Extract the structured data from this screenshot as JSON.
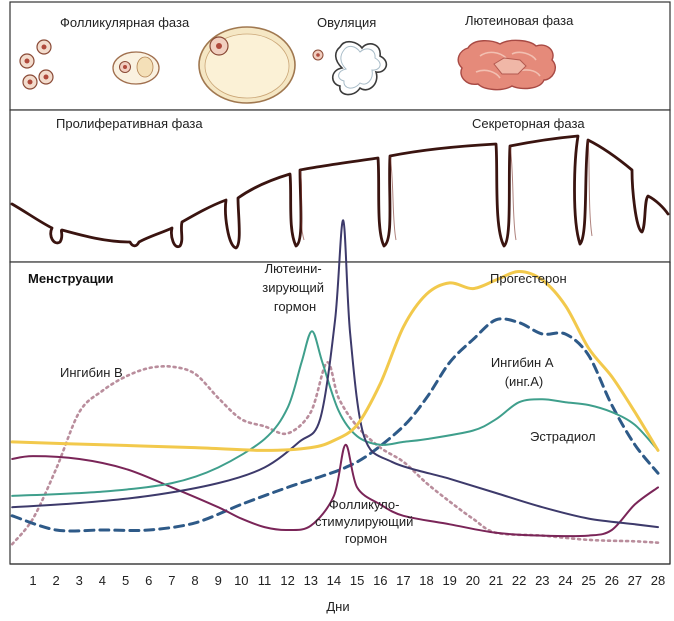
{
  "ovary_panel": {
    "follicular_label": "Фолликулярная фаза",
    "ovulation_label": "Овуляция",
    "luteal_label": "Лютеиновая фаза"
  },
  "uterus_panel": {
    "proliferative_label": "Пролиферативная фаза",
    "secretory_label": "Секреторная фаза"
  },
  "hormone_panel": {
    "menstruation_label": "Менструации",
    "lh_label_lines": [
      "Лютеини-",
      "зирующий",
      "гормон"
    ],
    "progesterone_label": "Прогестерон",
    "inhibin_b_label": "Ингибин В",
    "inhibin_a_label_lines": [
      "Ингибин А",
      "(инг.А)"
    ],
    "estradiol_label": "Эстрадиол",
    "fsh_label_lines": [
      "Фолликуло-",
      "стимулирующий",
      "гормон"
    ]
  },
  "chart_data": {
    "type": "line",
    "xlabel": "Дни",
    "x_ticks": [
      1,
      2,
      3,
      4,
      5,
      6,
      7,
      8,
      9,
      10,
      11,
      12,
      13,
      14,
      15,
      16,
      17,
      18,
      19,
      20,
      21,
      22,
      23,
      24,
      25,
      26,
      27,
      28
    ],
    "xlim": [
      0.1,
      28
    ],
    "series": [
      {
        "name": "Лютеини-зирующий гормон",
        "color": "#3d3a6b",
        "style": "solid",
        "points": [
          [
            0.1,
            0.28
          ],
          [
            3,
            0.31
          ],
          [
            6,
            0.36
          ],
          [
            9,
            0.45
          ],
          [
            11,
            0.56
          ],
          [
            12.5,
            0.74
          ],
          [
            13.4,
            0.9
          ],
          [
            14.05,
            1.6
          ],
          [
            14.4,
            2.3
          ],
          [
            14.7,
            1.5
          ],
          [
            15.3,
            0.78
          ],
          [
            16.5,
            0.6
          ],
          [
            19,
            0.48
          ],
          [
            21,
            0.38
          ],
          [
            23,
            0.28
          ],
          [
            25,
            0.2
          ],
          [
            27,
            0.16
          ],
          [
            28,
            0.14
          ]
        ]
      },
      {
        "name": "Прогестерон",
        "color": "#f2c94c",
        "style": "solid",
        "points": [
          [
            0.1,
            0.74
          ],
          [
            4,
            0.72
          ],
          [
            8,
            0.7
          ],
          [
            11,
            0.68
          ],
          [
            13,
            0.7
          ],
          [
            14,
            0.75
          ],
          [
            15,
            0.86
          ],
          [
            16,
            1.15
          ],
          [
            17,
            1.55
          ],
          [
            18,
            1.78
          ],
          [
            19,
            1.86
          ],
          [
            20,
            1.82
          ],
          [
            21,
            1.88
          ],
          [
            22,
            1.94
          ],
          [
            23,
            1.88
          ],
          [
            24,
            1.7
          ],
          [
            25,
            1.4
          ],
          [
            26,
            1.2
          ],
          [
            27,
            0.95
          ],
          [
            28,
            0.68
          ]
        ]
      },
      {
        "name": "Ингибин В",
        "color": "#b98d9c",
        "style": "dotted",
        "points": [
          [
            0.1,
            0.02
          ],
          [
            1,
            0.2
          ],
          [
            2,
            0.55
          ],
          [
            3,
            0.95
          ],
          [
            4,
            1.1
          ],
          [
            5,
            1.2
          ],
          [
            6,
            1.26
          ],
          [
            7,
            1.27
          ],
          [
            8,
            1.22
          ],
          [
            9,
            1.05
          ],
          [
            10,
            0.9
          ],
          [
            11,
            0.85
          ],
          [
            12,
            0.8
          ],
          [
            13,
            0.95
          ],
          [
            13.7,
            1.3
          ],
          [
            14.2,
            1.05
          ],
          [
            15,
            0.85
          ],
          [
            16,
            0.7
          ],
          [
            17,
            0.6
          ],
          [
            18,
            0.45
          ],
          [
            19,
            0.32
          ],
          [
            20,
            0.2
          ],
          [
            21,
            0.1
          ],
          [
            23,
            0.08
          ],
          [
            25,
            0.05
          ],
          [
            27,
            0.04
          ],
          [
            28,
            0.03
          ]
        ]
      },
      {
        "name": "Ингибин А (инг.А)",
        "color": "#2e5a88",
        "style": "dashed",
        "points": [
          [
            0.1,
            0.22
          ],
          [
            2,
            0.12
          ],
          [
            4,
            0.12
          ],
          [
            6,
            0.12
          ],
          [
            8,
            0.17
          ],
          [
            10,
            0.3
          ],
          [
            12,
            0.42
          ],
          [
            13.5,
            0.5
          ],
          [
            14.5,
            0.56
          ],
          [
            15.5,
            0.65
          ],
          [
            17,
            0.85
          ],
          [
            18,
            1.05
          ],
          [
            19,
            1.3
          ],
          [
            20,
            1.46
          ],
          [
            21,
            1.6
          ],
          [
            22,
            1.58
          ],
          [
            23,
            1.5
          ],
          [
            24,
            1.5
          ],
          [
            25,
            1.35
          ],
          [
            26,
            1.0
          ],
          [
            27,
            0.72
          ],
          [
            28,
            0.52
          ]
        ]
      },
      {
        "name": "Эстрадиол",
        "color": "#3f9f8c",
        "style": "solid",
        "points": [
          [
            0.1,
            0.36
          ],
          [
            4,
            0.39
          ],
          [
            7,
            0.45
          ],
          [
            9,
            0.56
          ],
          [
            11,
            0.76
          ],
          [
            12,
            0.98
          ],
          [
            12.6,
            1.3
          ],
          [
            13.05,
            1.52
          ],
          [
            13.5,
            1.3
          ],
          [
            14.2,
            0.96
          ],
          [
            15,
            0.78
          ],
          [
            16,
            0.72
          ],
          [
            17,
            0.74
          ],
          [
            18,
            0.76
          ],
          [
            20,
            0.82
          ],
          [
            21,
            0.9
          ],
          [
            22,
            1.02
          ],
          [
            23,
            1.04
          ],
          [
            24,
            1.02
          ],
          [
            25,
            1.0
          ],
          [
            26,
            0.95
          ],
          [
            27,
            0.86
          ],
          [
            28,
            0.68
          ]
        ]
      },
      {
        "name": "Фолликуло-стимулирующий гормон",
        "color": "#7a2558",
        "style": "solid",
        "points": [
          [
            0.1,
            0.62
          ],
          [
            1,
            0.64
          ],
          [
            3,
            0.62
          ],
          [
            5,
            0.55
          ],
          [
            7,
            0.42
          ],
          [
            9,
            0.28
          ],
          [
            10,
            0.2
          ],
          [
            11,
            0.14
          ],
          [
            12,
            0.12
          ],
          [
            13,
            0.15
          ],
          [
            14,
            0.36
          ],
          [
            14.5,
            0.72
          ],
          [
            15,
            0.42
          ],
          [
            16,
            0.3
          ],
          [
            17,
            0.22
          ],
          [
            19,
            0.16
          ],
          [
            21,
            0.1
          ],
          [
            23,
            0.08
          ],
          [
            25,
            0.08
          ],
          [
            26,
            0.12
          ],
          [
            27,
            0.3
          ],
          [
            28,
            0.42
          ]
        ]
      }
    ]
  }
}
